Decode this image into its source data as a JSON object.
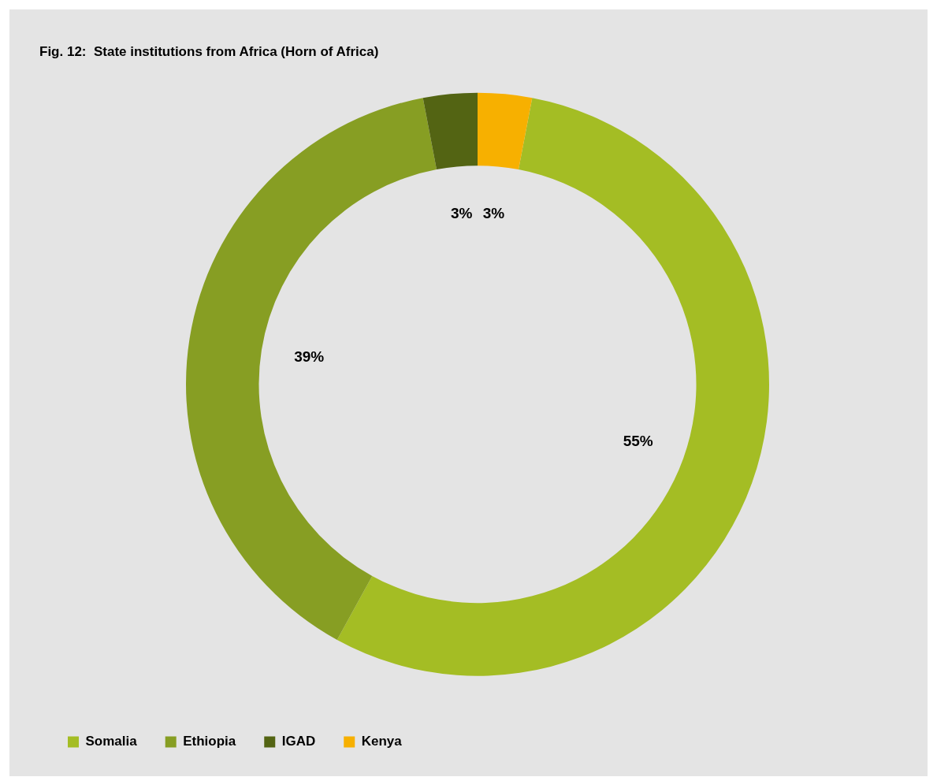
{
  "chart_data": {
    "type": "donut",
    "title": "Fig. 12:  State institutions from Africa (Horn of Africa)",
    "categories": [
      "Somalia",
      "Ethiopia",
      "IGAD",
      "Kenya"
    ],
    "values": [
      55,
      39,
      3,
      3
    ],
    "colors": [
      "#a4bd24",
      "#879e23",
      "#536413",
      "#f7b000"
    ],
    "value_labels": [
      "55%",
      "39%",
      "3%",
      "3%"
    ],
    "legend": "bottom left"
  }
}
